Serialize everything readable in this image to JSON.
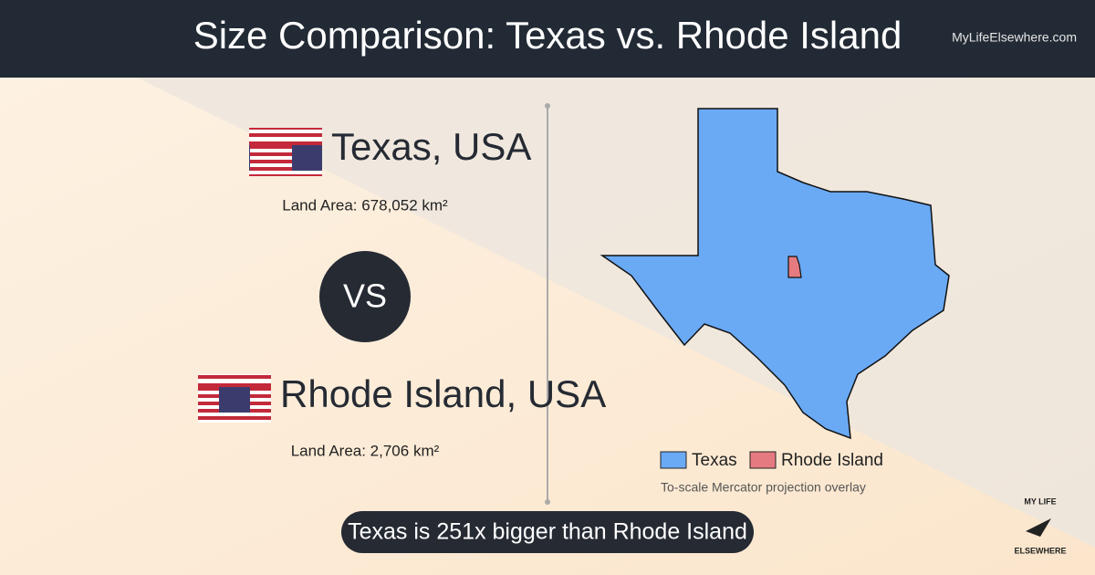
{
  "header": {
    "title": "Size Comparison: Texas vs. Rhode Island",
    "site": "MyLifeElsewhere.com"
  },
  "comparison": {
    "place1": {
      "name": "Texas, USA",
      "area": "Land Area: 678,052 km²"
    },
    "vs": "VS",
    "place2": {
      "name": "Rhode Island, USA",
      "area": "Land Area: 2,706 km²"
    }
  },
  "map": {
    "legend": [
      {
        "label": "Texas",
        "color": "#6aaaf5"
      },
      {
        "label": "Rhode Island",
        "color": "#e57b80"
      }
    ],
    "note": "To-scale Mercator projection overlay"
  },
  "summary": "Texas is 251x bigger than Rhode Island",
  "logo": {
    "top": "MY LIFE",
    "bottom": "ELSEWHERE"
  }
}
